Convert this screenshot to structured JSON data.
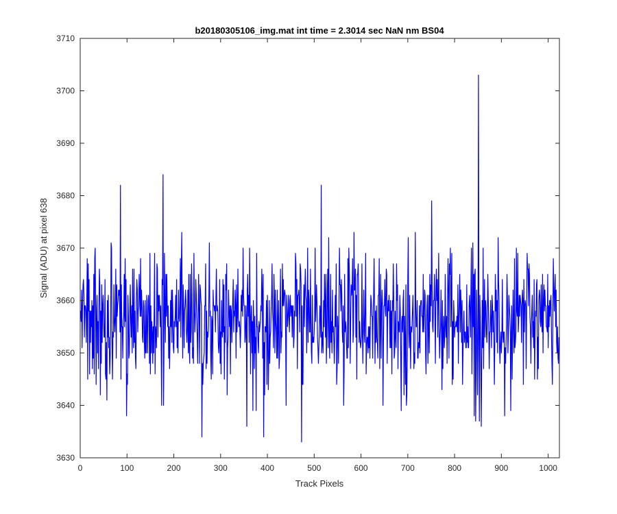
{
  "chart_data": {
    "type": "line",
    "title": "b20180305106_img.mat int time = 2.3014 sec  NaN nm BS04",
    "xlabel": "Track Pixels",
    "ylabel": "Signal (ADU) at pixel 638",
    "xlim": [
      0,
      1024
    ],
    "ylim": [
      3630,
      3710
    ],
    "xticks": [
      0,
      100,
      200,
      300,
      400,
      500,
      600,
      700,
      800,
      900,
      1000
    ],
    "yticks": [
      3630,
      3640,
      3650,
      3660,
      3670,
      3680,
      3690,
      3700,
      3710
    ],
    "grid": false,
    "legend": "none",
    "series_color": "#0000ff",
    "series": [
      {
        "length": 1024,
        "mean": 3656.5,
        "noise_sd": 6.5,
        "range": [
          3633,
          3703
        ],
        "notable_points": [
          {
            "x": 86,
            "y": 3682
          },
          {
            "x": 177,
            "y": 3684
          },
          {
            "x": 260,
            "y": 3634
          },
          {
            "x": 392,
            "y": 3634
          },
          {
            "x": 473,
            "y": 3633
          },
          {
            "x": 515,
            "y": 3682
          },
          {
            "x": 851,
            "y": 3703
          },
          {
            "x": 853,
            "y": 3637
          }
        ]
      }
    ]
  }
}
